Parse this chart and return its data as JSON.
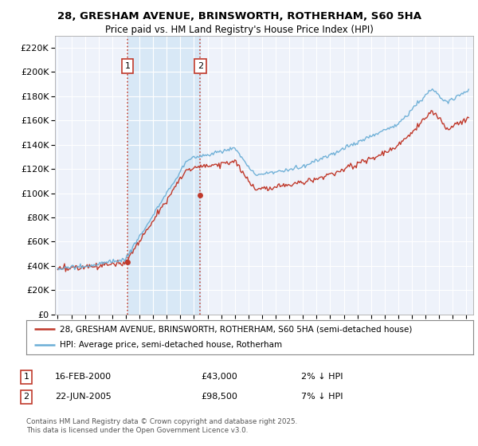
{
  "title_line1": "28, GRESHAM AVENUE, BRINSWORTH, ROTHERHAM, S60 5HA",
  "title_line2": "Price paid vs. HM Land Registry's House Price Index (HPI)",
  "legend_label1": "28, GRESHAM AVENUE, BRINSWORTH, ROTHERHAM, S60 5HA (semi-detached house)",
  "legend_label2": "HPI: Average price, semi-detached house, Rotherham",
  "annotation1_date": "16-FEB-2000",
  "annotation1_price": "£43,000",
  "annotation1_hpi": "2% ↓ HPI",
  "annotation2_date": "22-JUN-2005",
  "annotation2_price": "£98,500",
  "annotation2_hpi": "7% ↓ HPI",
  "footer": "Contains HM Land Registry data © Crown copyright and database right 2025.\nThis data is licensed under the Open Government Licence v3.0.",
  "sale1_year": 2000.12,
  "sale1_value": 43000,
  "sale2_year": 2005.47,
  "sale2_value": 98500,
  "hpi_color": "#6baed6",
  "price_color": "#c0392b",
  "background_color": "#ffffff",
  "plot_bg_color": "#eef2fa",
  "grid_color": "#ffffff",
  "ylim_min": 0,
  "ylim_max": 230000,
  "xlim_min": 1994.8,
  "xlim_max": 2025.5
}
